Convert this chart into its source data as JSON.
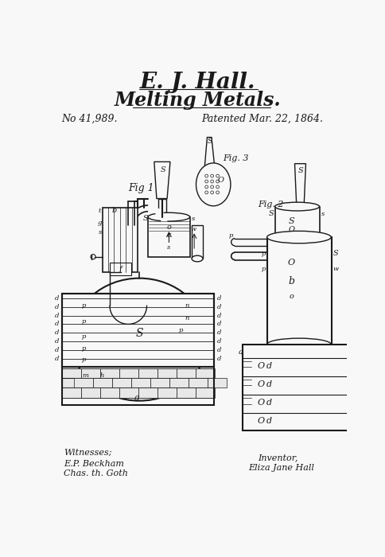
{
  "title_name": "E. J. Hall.",
  "title_invention": "Melting Metals.",
  "patent_number": "No 41,989.",
  "patent_date": "Patented Mar. 22, 1864.",
  "witnesses_label": "Witnesses;",
  "witness1": "E.P. Beckham",
  "witness2": "Chas. th. Goth",
  "inventor_label": "Inventor,",
  "inventor_name": "Eliza Jane Hall",
  "fig1_label": "Fig 1",
  "fig2_label": "Fig. 2",
  "fig3_label": "Fig. 3",
  "bg_color": "#f8f8f8",
  "line_color": "#1a1a1a",
  "text_color": "#1a1a1a"
}
